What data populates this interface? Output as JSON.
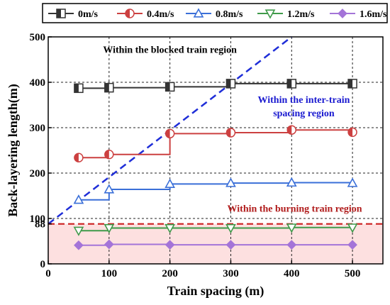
{
  "chart_data": {
    "type": "line",
    "title": "",
    "xlabel": "Train spacing (m)",
    "ylabel": "Back-layering length(m)",
    "xlim": [
      0,
      550
    ],
    "ylim": [
      0,
      500
    ],
    "x_ticks": [
      0,
      100,
      200,
      300,
      400,
      500
    ],
    "y_ticks": [
      0,
      88,
      100,
      200,
      300,
      400,
      500
    ],
    "x_tick_labels": [
      "0",
      "100",
      "200",
      "300",
      "400",
      "500"
    ],
    "y_tick_labels": [
      "0",
      "88",
      "100",
      "200",
      "300",
      "400",
      "500"
    ],
    "grid": true,
    "legend_position": "top",
    "x": [
      50,
      100,
      200,
      300,
      400,
      500
    ],
    "series": [
      {
        "name": "0m/s",
        "values": [
          387,
          388,
          390,
          397,
          397,
          397
        ],
        "color": "#333333",
        "marker": "square"
      },
      {
        "name": "0.4m/s",
        "values": [
          234,
          241,
          287,
          289,
          295,
          290
        ],
        "color": "#cc4040",
        "marker": "circle"
      },
      {
        "name": "0.8m/s",
        "values": [
          141,
          164,
          176,
          178,
          179,
          178
        ],
        "color": "#3a6fd8",
        "marker": "triangle-up"
      },
      {
        "name": "1.2m/s",
        "values": [
          73,
          79,
          79,
          79,
          80,
          80
        ],
        "color": "#3f9a4a",
        "marker": "triangle-down"
      },
      {
        "name": "1.6m/s",
        "values": [
          41,
          43,
          42,
          42,
          42,
          42
        ],
        "color": "#a474d8",
        "marker": "diamond"
      }
    ],
    "reference_lines": [
      {
        "kind": "diagonal",
        "from": [
          0,
          88
        ],
        "to": [
          400,
          500
        ],
        "color": "#1f2ed8",
        "style": "dashed"
      },
      {
        "kind": "horizontal",
        "y": 88,
        "color": "#cc1f1f",
        "style": "dashed"
      }
    ],
    "shaded_region": {
      "y_from": 0,
      "y_to": 88,
      "color": "#fde0e0"
    },
    "annotations": [
      {
        "text": "Within the blocked train region",
        "color": "#000000",
        "x": 200,
        "y": 465
      },
      {
        "text": "Within the inter-train",
        "color": "#1a1ad0",
        "x": 420,
        "y": 355
      },
      {
        "text": "spacing region",
        "color": "#1a1ad0",
        "x": 420,
        "y": 325
      },
      {
        "text": "Within the burning train region",
        "color": "#b01a1a",
        "x": 405,
        "y": 115
      }
    ]
  }
}
